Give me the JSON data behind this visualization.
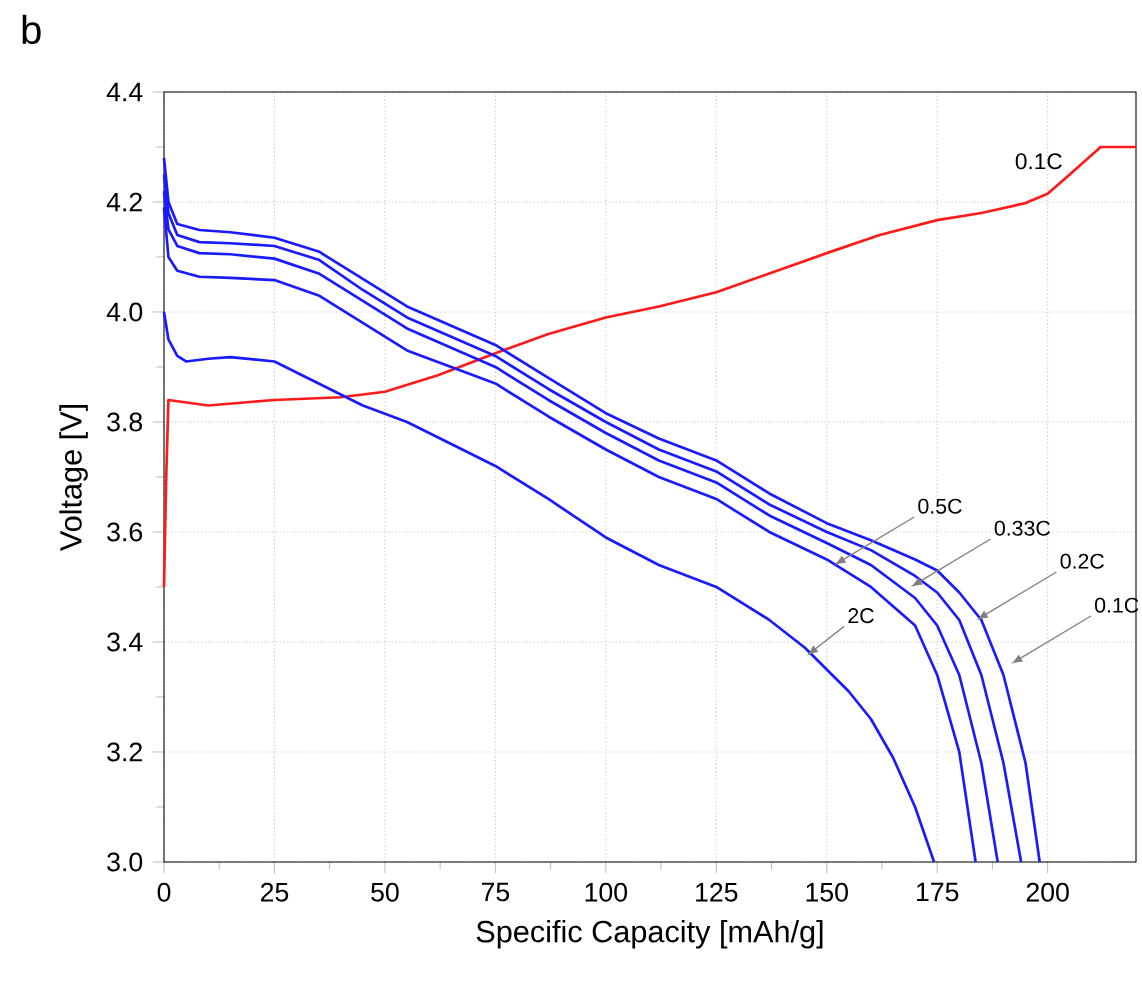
{
  "chart_data": {
    "type": "line",
    "title": "b",
    "xlabel": "Specific Capacity [mAh/g]",
    "ylabel": "Voltage [V]",
    "xlim": [
      0,
      220
    ],
    "ylim": [
      3.0,
      4.4
    ],
    "xticks": [
      0,
      25,
      50,
      75,
      100,
      125,
      150,
      175,
      200
    ],
    "yticks": [
      {
        "value": 3.0,
        "label": "3.0"
      },
      {
        "value": 3.2,
        "label": "3.2"
      },
      {
        "value": 3.4,
        "label": "3.4"
      },
      {
        "value": 3.6,
        "label": "3.6"
      },
      {
        "value": 3.8,
        "label": "3.8"
      },
      {
        "value": 4.0,
        "label": "4.0"
      },
      {
        "value": 4.2,
        "label": "4.2"
      },
      {
        "value": 4.4,
        "label": "4.4"
      }
    ],
    "grid": true,
    "series": [
      {
        "color": "#ff1a1a",
        "x": [
          0,
          0.5,
          1,
          10,
          25,
          40,
          50,
          62,
          75,
          87,
          100,
          112,
          125,
          137,
          150,
          162,
          175,
          185,
          195,
          200,
          205,
          212,
          220
        ],
        "values": [
          3.5,
          3.7,
          3.84,
          3.83,
          3.84,
          3.845,
          3.855,
          3.885,
          3.925,
          3.96,
          3.99,
          4.01,
          4.036,
          4.07,
          4.107,
          4.14,
          4.167,
          4.18,
          4.198,
          4.215,
          4.25,
          4.3,
          4.3
        ]
      },
      {
        "color": "#1a1aff",
        "x": [
          0,
          1,
          3,
          8,
          15,
          25,
          35,
          45,
          55,
          65,
          75,
          87,
          100,
          112,
          125,
          137,
          150,
          160,
          170,
          175,
          180,
          185,
          190,
          195,
          198.2
        ],
        "values": [
          4.28,
          4.2,
          4.16,
          4.149,
          4.145,
          4.135,
          4.11,
          4.06,
          4.01,
          3.975,
          3.94,
          3.88,
          3.816,
          3.77,
          3.73,
          3.67,
          3.616,
          3.585,
          3.55,
          3.53,
          3.49,
          3.44,
          3.34,
          3.18,
          3.0
        ]
      },
      {
        "color": "#1a1aff",
        "x": [
          0,
          1,
          3,
          8,
          15,
          25,
          35,
          45,
          55,
          65,
          75,
          87,
          100,
          112,
          125,
          137,
          150,
          160,
          170,
          175,
          180,
          185,
          190,
          194
        ],
        "values": [
          4.25,
          4.18,
          4.14,
          4.127,
          4.125,
          4.12,
          4.095,
          4.04,
          3.99,
          3.955,
          3.92,
          3.86,
          3.8,
          3.75,
          3.71,
          3.65,
          3.6,
          3.567,
          3.52,
          3.49,
          3.44,
          3.34,
          3.18,
          3.0
        ]
      },
      {
        "color": "#1a1aff",
        "x": [
          0,
          1,
          3,
          8,
          15,
          25,
          35,
          45,
          55,
          65,
          75,
          87,
          100,
          112,
          125,
          137,
          150,
          160,
          170,
          175,
          180,
          185,
          188.7
        ],
        "values": [
          4.22,
          4.15,
          4.12,
          4.107,
          4.105,
          4.097,
          4.07,
          4.02,
          3.97,
          3.935,
          3.9,
          3.84,
          3.78,
          3.73,
          3.69,
          3.63,
          3.58,
          3.54,
          3.48,
          3.43,
          3.34,
          3.18,
          3.0
        ]
      },
      {
        "color": "#1a1aff",
        "x": [
          0,
          1,
          3,
          8,
          15,
          25,
          35,
          45,
          55,
          65,
          75,
          87,
          100,
          112,
          125,
          137,
          150,
          160,
          170,
          175,
          180,
          183.7
        ],
        "values": [
          4.19,
          4.1,
          4.075,
          4.064,
          4.062,
          4.058,
          4.03,
          3.98,
          3.93,
          3.9,
          3.87,
          3.81,
          3.75,
          3.7,
          3.66,
          3.6,
          3.55,
          3.5,
          3.43,
          3.34,
          3.2,
          3.0
        ]
      },
      {
        "color": "#1a1aff",
        "x": [
          0,
          1,
          3,
          5,
          10,
          15,
          25,
          35,
          45,
          55,
          65,
          75,
          87,
          100,
          112,
          125,
          137,
          145,
          150,
          155,
          160,
          165,
          170,
          174.3
        ],
        "values": [
          4.0,
          3.95,
          3.92,
          3.91,
          3.915,
          3.918,
          3.91,
          3.87,
          3.83,
          3.8,
          3.76,
          3.72,
          3.66,
          3.59,
          3.54,
          3.5,
          3.44,
          3.39,
          3.35,
          3.31,
          3.26,
          3.19,
          3.1,
          3.0
        ]
      }
    ],
    "annotations": [
      "0.1C",
      {
        "text": "2C",
        "x": 145.5,
        "y": 3.375
      },
      {
        "text": "0.5C",
        "x": 151.7,
        "y": 3.54
      },
      {
        "text": "0.33C",
        "x": 169,
        "y": 3.5
      },
      {
        "text": "0.2C",
        "x": 183.9,
        "y": 3.44
      },
      {
        "text": "0.1C",
        "x": 191.7,
        "y": 3.36
      }
    ]
  }
}
